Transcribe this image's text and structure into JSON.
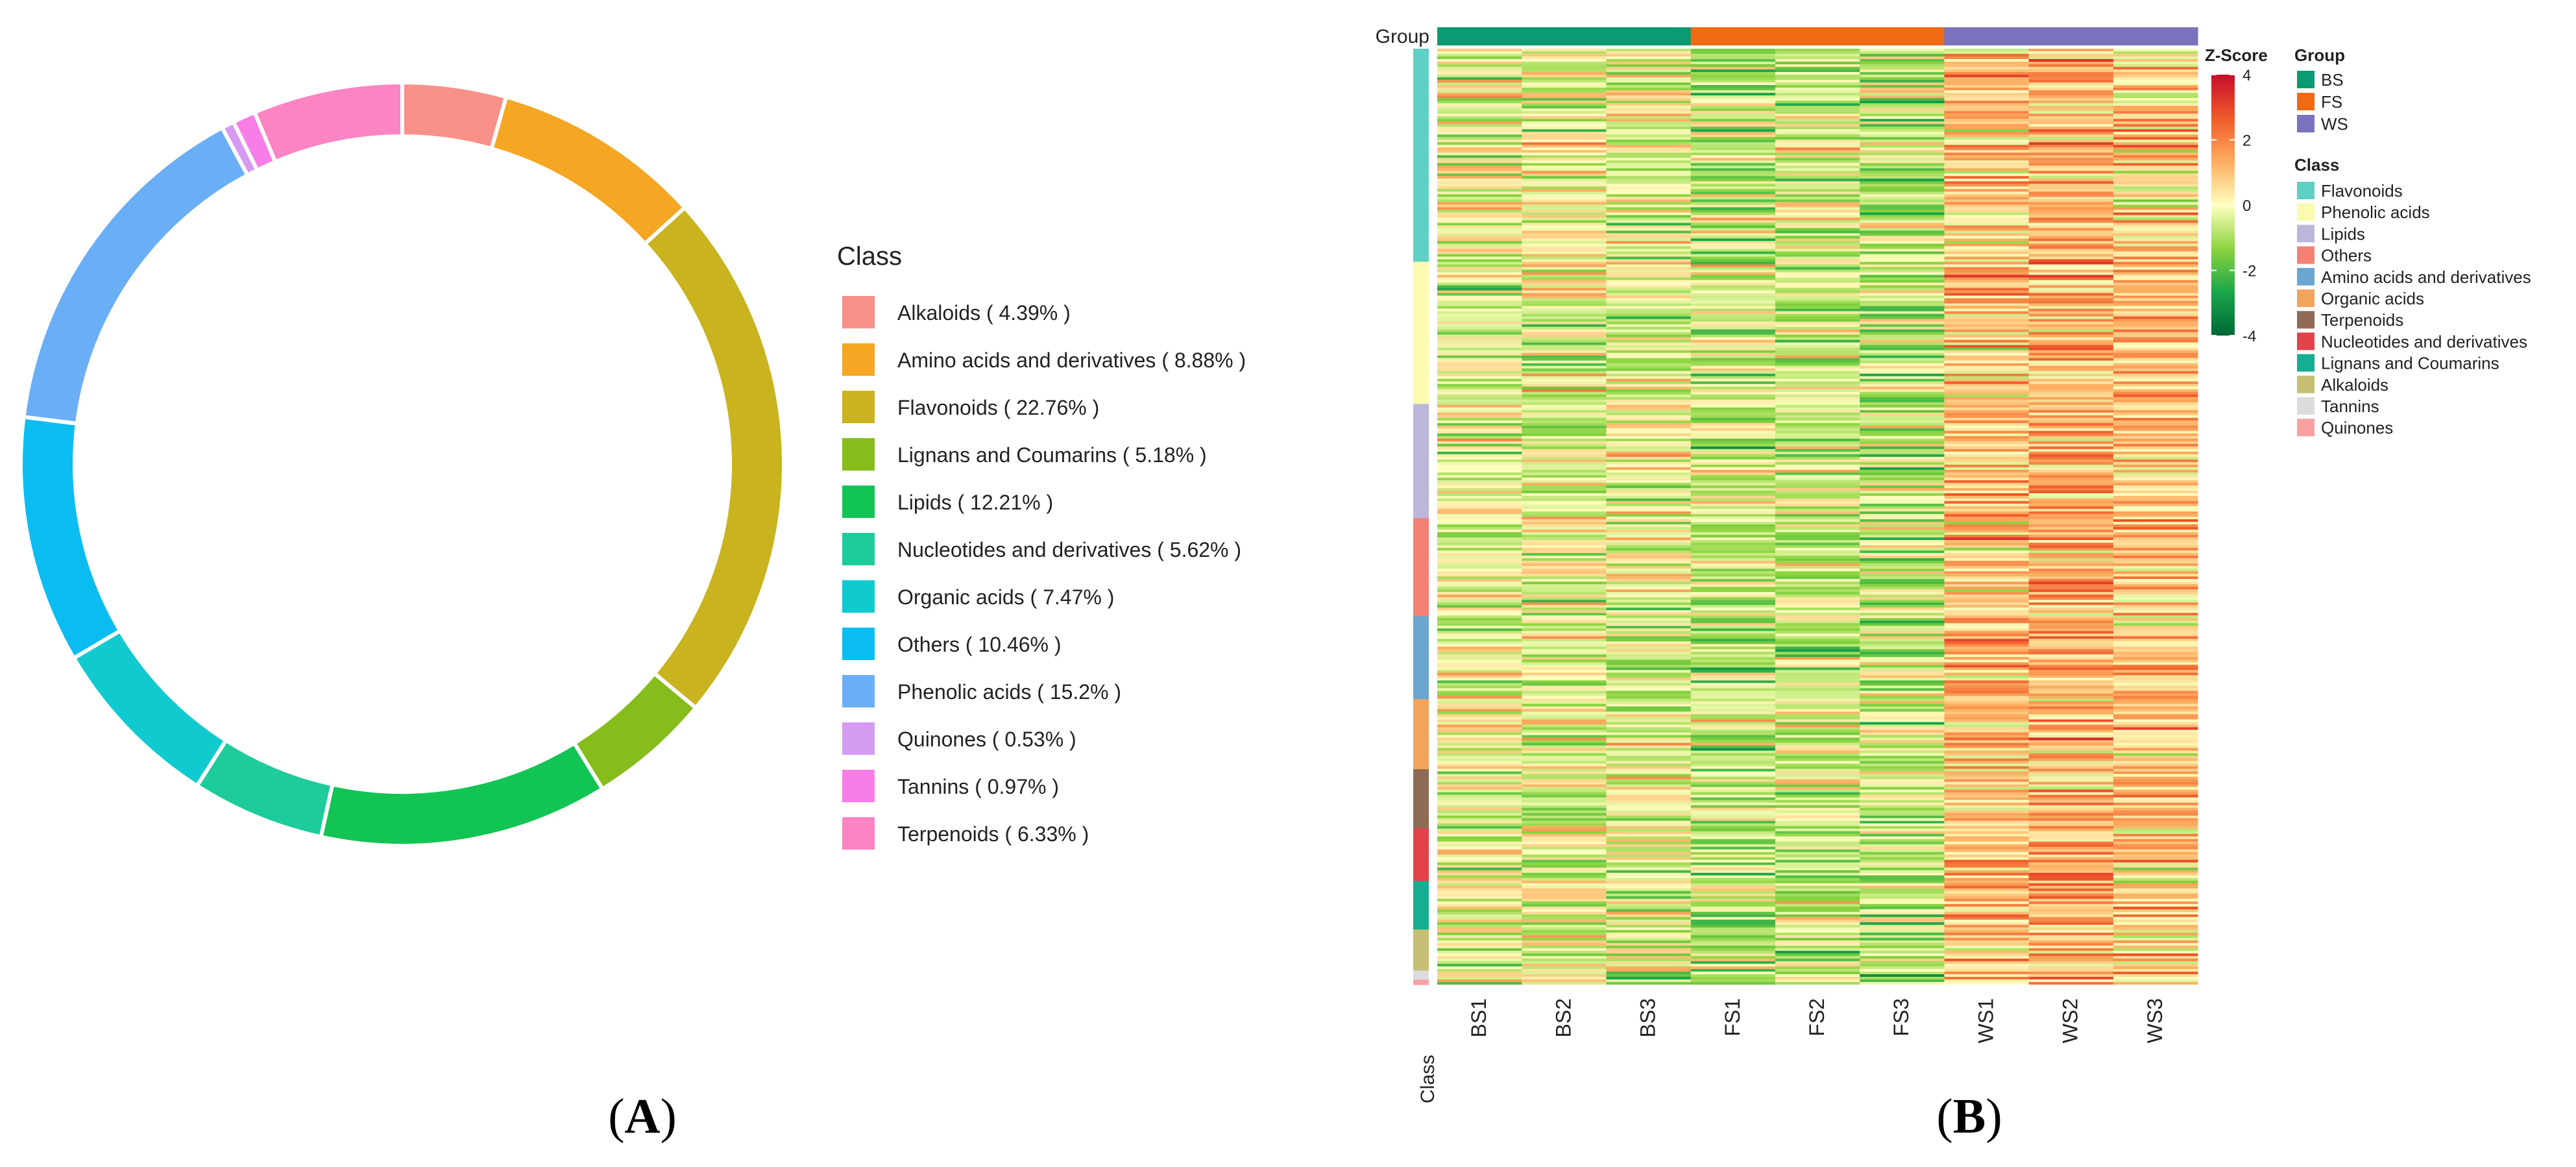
{
  "panel_labels": {
    "a": {
      "open": "(",
      "letter": "A",
      "close": ")"
    },
    "b": {
      "open": "(",
      "letter": "B",
      "close": ")"
    }
  },
  "chart_data": [
    {
      "type": "pie",
      "variant": "donut",
      "title": "",
      "legend_title": "Class",
      "legend_position": "right",
      "slices": [
        {
          "label": "Alkaloids ( 4.39% )",
          "name": "Alkaloids",
          "value": 4.39,
          "color": "#F8918A"
        },
        {
          "label": "Amino acids and derivatives ( 8.88% )",
          "name": "Amino acids and derivatives",
          "value": 8.88,
          "color": "#F5A623"
        },
        {
          "label": "Flavonoids ( 22.76% )",
          "name": "Flavonoids",
          "value": 22.76,
          "color": "#C9B31E"
        },
        {
          "label": "Lignans and Coumarins ( 5.18% )",
          "name": "Lignans and Coumarins",
          "value": 5.18,
          "color": "#86BC1C"
        },
        {
          "label": "Lipids ( 12.21% )",
          "name": "Lipids",
          "value": 12.21,
          "color": "#12C454"
        },
        {
          "label": "Nucleotides and derivatives ( 5.62% )",
          "name": "Nucleotides and derivatives",
          "value": 5.62,
          "color": "#1ECB9B"
        },
        {
          "label": "Organic acids ( 7.47% )",
          "name": "Organic acids",
          "value": 7.47,
          "color": "#11CAD0"
        },
        {
          "label": "Others ( 10.46% )",
          "name": "Others",
          "value": 10.46,
          "color": "#0BBCF1"
        },
        {
          "label": "Phenolic acids ( 15.2% )",
          "name": "Phenolic acids",
          "value": 15.2,
          "color": "#6AAEF5"
        },
        {
          "label": "Quinones ( 0.53% )",
          "name": "Quinones",
          "value": 0.53,
          "color": "#D59BF0"
        },
        {
          "label": "Tannins ( 0.97% )",
          "name": "Tannins",
          "value": 0.97,
          "color": "#F77EE6"
        },
        {
          "label": "Terpenoids ( 6.33% )",
          "name": "Terpenoids",
          "value": 6.33,
          "color": "#FB85C2"
        }
      ]
    },
    {
      "type": "heatmap",
      "title": "",
      "ylabel": "",
      "column_annotation_label": "Group",
      "row_annotation_label": "Class",
      "columns": [
        "BS1",
        "BS2",
        "BS3",
        "FS1",
        "FS2",
        "FS3",
        "WS1",
        "WS2",
        "WS3"
      ],
      "column_groups": [
        "BS",
        "BS",
        "BS",
        "FS",
        "FS",
        "FS",
        "WS",
        "WS",
        "WS"
      ],
      "groups": [
        {
          "name": "BS",
          "color": "#0C9A73"
        },
        {
          "name": "FS",
          "color": "#F06A12"
        },
        {
          "name": "WS",
          "color": "#7A72BC"
        }
      ],
      "row_classes": [
        {
          "name": "Flavonoids",
          "fraction": 0.2276,
          "color": "#5FD0C4"
        },
        {
          "name": "Phenolic acids",
          "fraction": 0.152,
          "color": "#FBFBB0"
        },
        {
          "name": "Lipids",
          "fraction": 0.1221,
          "color": "#BCB6D9"
        },
        {
          "name": "Others",
          "fraction": 0.1046,
          "color": "#F48074"
        },
        {
          "name": "Amino acids and derivatives",
          "fraction": 0.0888,
          "color": "#6BA6CF"
        },
        {
          "name": "Organic acids",
          "fraction": 0.0747,
          "color": "#F2A45C"
        },
        {
          "name": "Terpenoids",
          "fraction": 0.0633,
          "color": "#8F6B56"
        },
        {
          "name": "Nucleotides and derivatives",
          "fraction": 0.0562,
          "color": "#E2424A"
        },
        {
          "name": "Lignans and Coumarins",
          "fraction": 0.0518,
          "color": "#15AE90"
        },
        {
          "name": "Alkaloids",
          "fraction": 0.0439,
          "color": "#C7BF74"
        },
        {
          "name": "Tannins",
          "fraction": 0.0097,
          "color": "#DCDCDC"
        },
        {
          "name": "Quinones",
          "fraction": 0.0053,
          "color": "#F8A0A0"
        }
      ],
      "column_mean_zscore": [
        -0.15,
        -0.2,
        -0.15,
        -0.65,
        -0.6,
        -0.7,
        0.9,
        1.2,
        0.85
      ],
      "colorscale": {
        "title": "Z-Score",
        "range": [
          -4,
          4
        ],
        "ticks": [
          4,
          2,
          0,
          -2,
          -4
        ],
        "tick_labels": [
          "4",
          "2",
          "0",
          "-2",
          "-4"
        ],
        "colors": [
          "#006837",
          "#1AA64A",
          "#8CD43F",
          "#FFFFBF",
          "#FDAE61",
          "#F05A2A",
          "#C60D2B"
        ]
      },
      "legend_group_title": "Group",
      "legend_class_title": "Class",
      "legend_position": "right"
    }
  ]
}
